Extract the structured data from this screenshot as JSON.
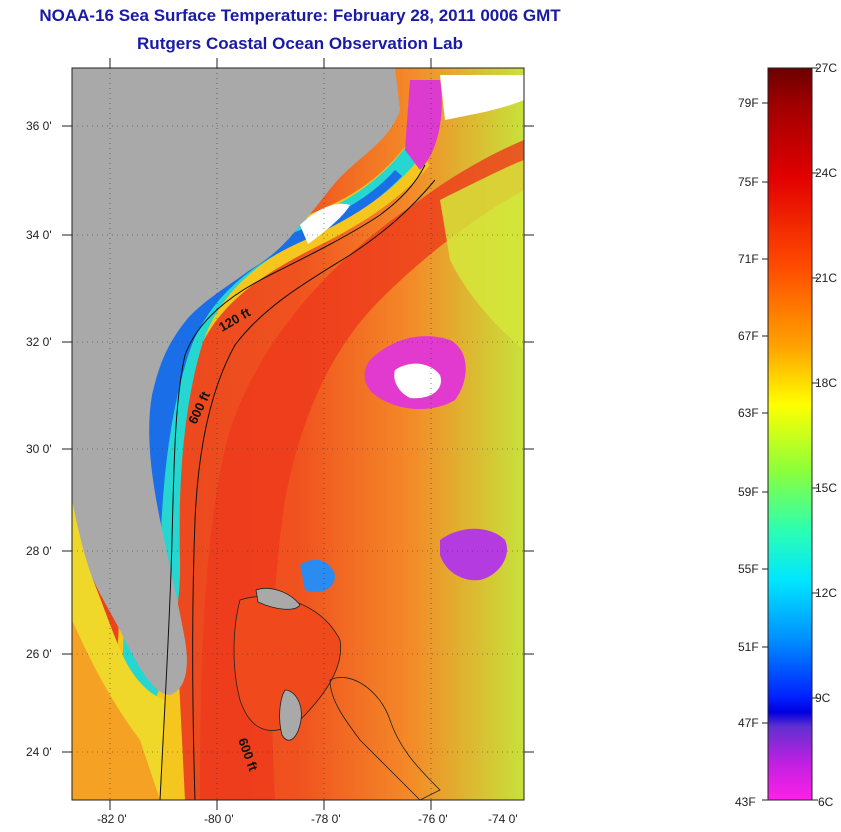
{
  "title": "NOAA-16 Sea Surface Temperature:  February 28, 2011 0006 GMT",
  "subtitle": "Rutgers Coastal Ocean Observation Lab",
  "lat_ticks": [
    "36 0'",
    "34 0'",
    "32 0'",
    "30 0'",
    "28 0'",
    "26 0'",
    "24 0'"
  ],
  "lon_ticks": [
    "-82 0'",
    "-80 0'",
    "-78 0'",
    "-76 0'",
    "-74 0'"
  ],
  "contours": [
    "120 ft",
    "600 ft",
    "600 ft"
  ],
  "colorbar": {
    "fahrenheit": [
      "79F",
      "75F",
      "71F",
      "67F",
      "63F",
      "59F",
      "55F",
      "51F",
      "47F",
      "43F"
    ],
    "celsius": [
      "27C",
      "24C",
      "21C",
      "18C",
      "15C",
      "12C",
      "9C",
      "6C"
    ]
  },
  "colors": {
    "land": "#a9a9a9",
    "title": "#1a1aa8"
  }
}
